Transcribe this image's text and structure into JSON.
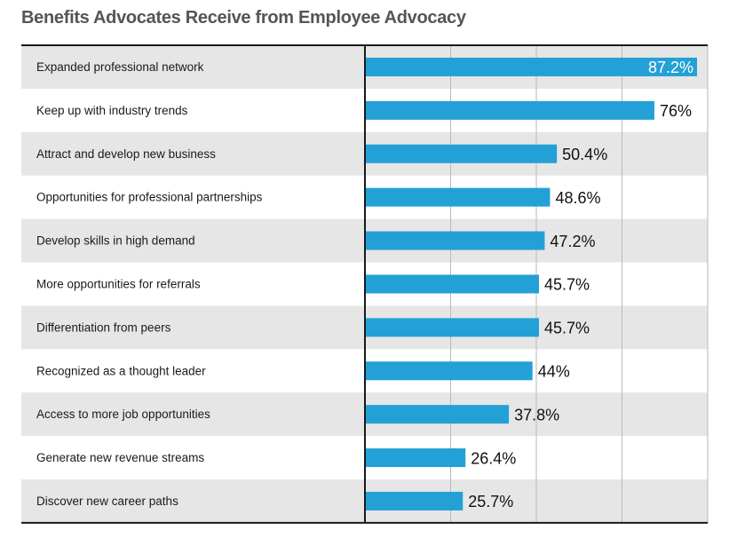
{
  "title": "Benefits Advocates Receive from Employee Advocacy",
  "colors": {
    "bar": "#23a1d6",
    "band": "#e6e6e6",
    "grid": "#b9b9b9",
    "axis": "#1a1a1a"
  },
  "chart_data": {
    "type": "bar",
    "orientation": "horizontal",
    "title": "Benefits Advocates Receive from Employee Advocacy",
    "xlim": [
      0,
      90
    ],
    "grid": true,
    "categories": [
      "Expanded professional network",
      "Keep up with industry trends",
      "Attract and develop new business",
      "Opportunities for professional partnerships",
      "Develop skills in high demand",
      "More opportunities for referrals",
      "Differentiation from peers",
      "Recognized as a thought leader",
      "Access to more job opportunities",
      "Generate new revenue streams",
      "Discover new career paths"
    ],
    "values": [
      87.2,
      76,
      50.4,
      48.6,
      47.2,
      45.7,
      45.7,
      44,
      37.8,
      26.4,
      25.7
    ],
    "value_labels": [
      "87.2%",
      "76%",
      "50.4%",
      "48.6%",
      "47.2%",
      "45.7%",
      "45.7%",
      "44%",
      "37.8%",
      "26.4%",
      "25.7%"
    ]
  }
}
